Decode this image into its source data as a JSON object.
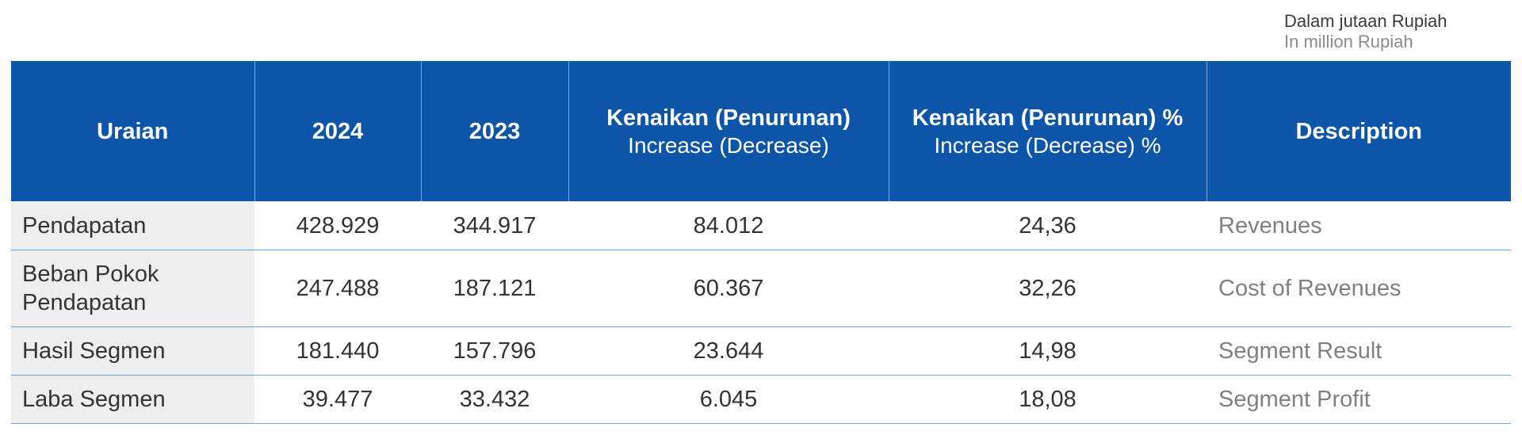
{
  "unit_note": {
    "id": "Dalam jutaan Rupiah",
    "en": "In million Rupiah"
  },
  "table": {
    "headers": [
      {
        "main": "Uraian",
        "sub": ""
      },
      {
        "main": "2024",
        "sub": ""
      },
      {
        "main": "2023",
        "sub": ""
      },
      {
        "main": "Kenaikan (Penurunan)",
        "sub": "Increase (Decrease)"
      },
      {
        "main": "Kenaikan (Penurunan) %",
        "sub": "Increase (Decrease) %"
      },
      {
        "main": "Description",
        "sub": ""
      }
    ],
    "rows": [
      {
        "uraian": "Pendapatan",
        "y2024": "428.929",
        "y2023": "344.917",
        "change": "84.012",
        "change_pct": "24,36",
        "description": "Revenues"
      },
      {
        "uraian": "Beban Pokok Pendapatan",
        "y2024": "247.488",
        "y2023": "187.121",
        "change": "60.367",
        "change_pct": "32,26",
        "description": "Cost of Revenues"
      },
      {
        "uraian": "Hasil Segmen",
        "y2024": "181.440",
        "y2023": "157.796",
        "change": "23.644",
        "change_pct": "14,98",
        "description": "Segment Result"
      },
      {
        "uraian": "Laba Segmen",
        "y2024": "39.477",
        "y2023": "33.432",
        "change": "6.045",
        "change_pct": "18,08",
        "description": "Segment Profit"
      }
    ]
  },
  "colors": {
    "header_bg": "#0c55a8",
    "label_bg": "#efeeee",
    "row_divider": "#6aa9df",
    "description_text": "#808080"
  }
}
